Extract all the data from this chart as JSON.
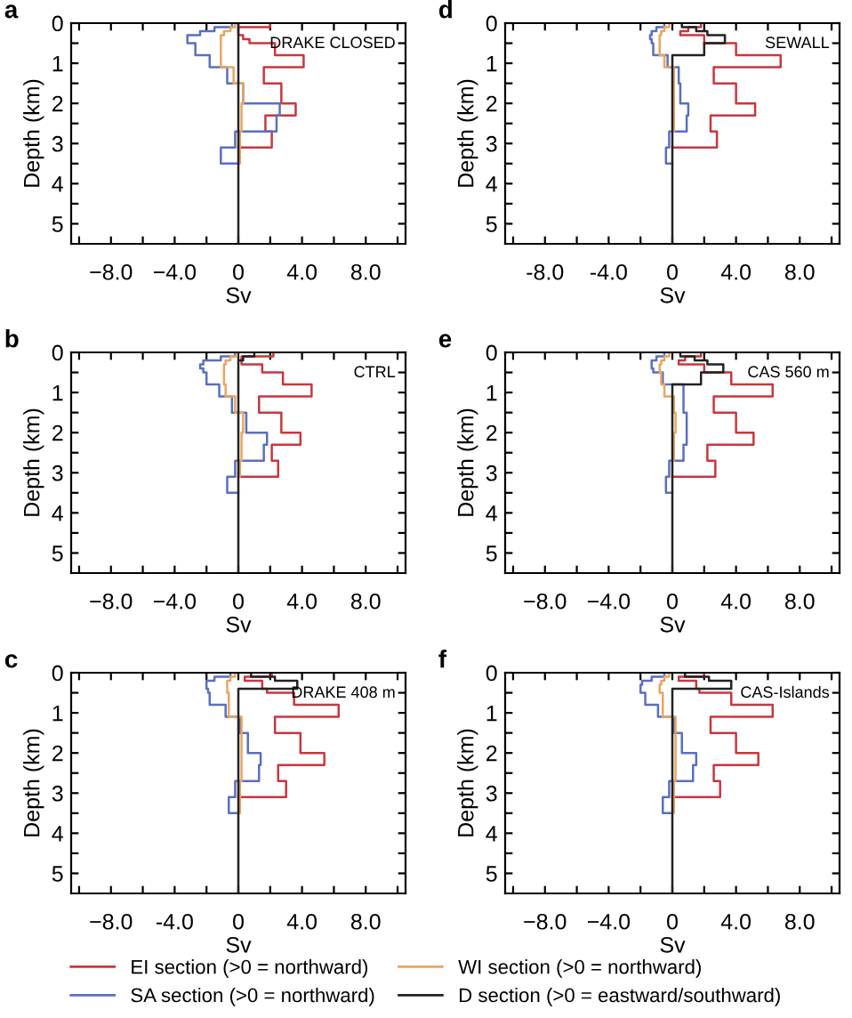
{
  "chart_data": [
    {
      "type": "step",
      "orientation": "horizontal",
      "title": "a",
      "xlabel": "Sv",
      "ylabel": "Depth (km)",
      "annotations": [
        "DRAKE CLOSED"
      ],
      "x": [
        0,
        0.1,
        0.2,
        0.3,
        0.4,
        0.5,
        0.8,
        1.1,
        1.5,
        2.0,
        2.3,
        2.7,
        3.1,
        3.5,
        5.5
      ],
      "xlim": [
        -10.5,
        10.5
      ],
      "ylim": [
        5.5,
        0
      ],
      "xticks": [
        {
          "value": -10,
          "label": null
        },
        {
          "value": -8,
          "label": "−8.0"
        },
        {
          "value": -6,
          "label": null
        },
        {
          "value": -4,
          "label": "−4.0"
        },
        {
          "value": -2,
          "label": null
        },
        0,
        {
          "value": 2,
          "label": null
        },
        {
          "value": 4,
          "label": "4.0"
        },
        {
          "value": 6,
          "label": null
        },
        {
          "value": 8,
          "label": "8.0"
        },
        {
          "value": 10,
          "label": null
        }
      ],
      "yticks": [
        0,
        {
          "value": 0.5,
          "label": null
        },
        1,
        {
          "value": 1.5,
          "label": null
        },
        2,
        {
          "value": 2.5,
          "label": null
        },
        3,
        {
          "value": 3.5,
          "label": null
        },
        4,
        {
          "value": 4.5,
          "label": null
        },
        5
      ],
      "legend": "bottom",
      "series": [
        {
          "name": "EI section (>0 = northward)",
          "color": "#c8373f",
          "values": [
            2.0,
            0.0,
            0.0,
            0.3,
            0.7,
            2.3,
            4.1,
            1.6,
            2.7,
            3.6,
            1.7,
            2.1,
            0,
            null,
            null
          ]
        },
        {
          "name": "SA section (>0 = northward)",
          "color": "#5a6fbf",
          "values": [
            -0.4,
            -1.5,
            -2.4,
            -3.2,
            -3.2,
            -2.7,
            -1.8,
            -0.7,
            0.3,
            2.6,
            2.4,
            -0.2,
            -1.1,
            0,
            null
          ]
        },
        {
          "name": "WI section (>0 = northward)",
          "color": "#e8a562",
          "values": [
            -0.2,
            -0.5,
            -0.9,
            -1.1,
            -1.1,
            -1.1,
            -1.1,
            -0.3,
            0.3,
            0.2,
            0.2,
            0.1,
            0.1,
            0,
            null
          ]
        },
        {
          "name": "D section (>0 = eastward/southward)",
          "color": "#222222",
          "values": [
            0,
            0,
            0,
            0,
            0,
            0,
            0,
            0,
            0,
            0,
            0,
            0,
            0,
            0,
            0
          ]
        }
      ]
    },
    {
      "type": "step",
      "orientation": "horizontal",
      "title": "b",
      "xlabel": "Sv",
      "ylabel": "Depth (km)",
      "annotations": [
        "CTRL"
      ],
      "x": [
        0,
        0.1,
        0.2,
        0.3,
        0.4,
        0.5,
        0.8,
        1.1,
        1.5,
        2.0,
        2.3,
        2.7,
        3.1,
        3.5,
        5.5
      ],
      "xlim": [
        -10.5,
        10.5
      ],
      "ylim": [
        5.5,
        0
      ],
      "xticks": [
        {
          "value": -10,
          "label": null
        },
        {
          "value": -8,
          "label": "−8.0"
        },
        {
          "value": -6,
          "label": null
        },
        {
          "value": -4,
          "label": "−4.0"
        },
        {
          "value": -2,
          "label": null
        },
        0,
        {
          "value": 2,
          "label": null
        },
        {
          "value": 4,
          "label": "4.0"
        },
        {
          "value": 6,
          "label": null
        },
        {
          "value": 8,
          "label": "8.0"
        },
        {
          "value": 10,
          "label": null
        }
      ],
      "yticks": [
        0,
        {
          "value": 0.5,
          "label": null
        },
        1,
        {
          "value": 1.5,
          "label": null
        },
        2,
        {
          "value": 2.5,
          "label": null
        },
        3,
        {
          "value": 3.5,
          "label": null
        },
        4,
        {
          "value": 4.5,
          "label": null
        },
        5
      ],
      "series": [
        {
          "color": "#c8373f",
          "values": [
            2.2,
            0.2,
            0.2,
            1.5,
            1.5,
            2.8,
            4.6,
            1.3,
            2.7,
            3.9,
            2.1,
            2.5,
            0,
            null,
            null
          ]
        },
        {
          "color": "#5a6fbf",
          "values": [
            -0.2,
            -1.1,
            -2.2,
            -2.4,
            -2.2,
            -2.0,
            -1.2,
            -0.4,
            0.5,
            1.8,
            1.6,
            -0.2,
            -0.7,
            0,
            null
          ]
        },
        {
          "color": "#e8a562",
          "values": [
            -0.1,
            -0.5,
            -0.8,
            -0.9,
            -0.9,
            -0.9,
            -0.8,
            -0.2,
            0.3,
            0.2,
            0.2,
            0.1,
            0,
            null,
            null
          ]
        },
        {
          "color": "#222222",
          "values": [
            1.0,
            0.3,
            0,
            0,
            0,
            0,
            0,
            0,
            0,
            0,
            0,
            0,
            0,
            0,
            0
          ]
        }
      ]
    },
    {
      "type": "step",
      "orientation": "horizontal",
      "title": "c",
      "xlabel": "Sv",
      "ylabel": "Depth (km)",
      "annotations": [
        "DRAKE 408 m"
      ],
      "x": [
        0,
        0.1,
        0.2,
        0.3,
        0.4,
        0.5,
        0.8,
        1.1,
        1.5,
        2.0,
        2.3,
        2.7,
        3.1,
        3.5,
        5.5
      ],
      "xlim": [
        -10.5,
        10.5
      ],
      "ylim": [
        5.5,
        0
      ],
      "xticks": [
        {
          "value": -10,
          "label": null
        },
        {
          "value": -8,
          "label": "−8.0"
        },
        {
          "value": -6,
          "label": null
        },
        {
          "value": -4,
          "label": "-4.0"
        },
        {
          "value": -2,
          "label": null
        },
        0,
        {
          "value": 2,
          "label": null
        },
        {
          "value": 4,
          "label": "4.0"
        },
        {
          "value": 6,
          "label": null
        },
        {
          "value": 8,
          "label": "8.0"
        },
        {
          "value": 10,
          "label": null
        }
      ],
      "yticks": [
        0,
        {
          "value": 0.5,
          "label": null
        },
        1,
        {
          "value": 1.5,
          "label": null
        },
        2,
        {
          "value": 2.5,
          "label": null
        },
        3,
        {
          "value": 3.5,
          "label": null
        },
        4,
        {
          "value": 4.5,
          "label": null
        },
        5
      ],
      "series": [
        {
          "color": "#c8373f",
          "values": [
            2.1,
            0.4,
            1.5,
            1.5,
            1.8,
            3.5,
            6.3,
            2.3,
            3.9,
            5.4,
            2.5,
            3.0,
            0,
            null,
            null
          ]
        },
        {
          "color": "#5a6fbf",
          "values": [
            -0.5,
            -1.5,
            -2.0,
            -2.0,
            -1.9,
            -1.8,
            -0.8,
            0.1,
            0.6,
            1.4,
            1.3,
            -0.2,
            -0.6,
            0,
            null
          ]
        },
        {
          "color": "#e8a562",
          "values": [
            -0.2,
            -0.5,
            -0.7,
            -0.7,
            -0.7,
            -0.6,
            -0.6,
            0.2,
            0.2,
            0.2,
            0.2,
            0.1,
            0.1,
            0,
            null
          ]
        },
        {
          "color": "#222222",
          "values": [
            0.8,
            2.3,
            3.7,
            3.7,
            0,
            0,
            0,
            0,
            0,
            0,
            0,
            0,
            0,
            0,
            0
          ]
        }
      ]
    },
    {
      "type": "step",
      "orientation": "horizontal",
      "title": "d",
      "xlabel": "Sv",
      "ylabel": "Depth (km)",
      "annotations": [
        "SEWALL"
      ],
      "x": [
        0,
        0.1,
        0.2,
        0.3,
        0.4,
        0.5,
        0.8,
        1.1,
        1.5,
        2.0,
        2.3,
        2.7,
        3.1,
        3.5,
        5.5
      ],
      "xlim": [
        -10.5,
        10.5
      ],
      "ylim": [
        5.5,
        0
      ],
      "xticks": [
        {
          "value": -10,
          "label": null
        },
        {
          "value": -8,
          "label": "-8.0"
        },
        {
          "value": -6,
          "label": null
        },
        {
          "value": -4,
          "label": "-4.0"
        },
        {
          "value": -2,
          "label": null
        },
        0,
        {
          "value": 2,
          "label": null
        },
        {
          "value": 4,
          "label": "4.0"
        },
        {
          "value": 6,
          "label": null
        },
        {
          "value": 8,
          "label": "8.0"
        },
        {
          "value": 10,
          "label": null
        }
      ],
      "yticks": [
        0,
        {
          "value": 0.5,
          "label": null
        },
        1,
        {
          "value": 1.5,
          "label": null
        },
        2,
        {
          "value": 2.5,
          "label": null
        },
        3,
        {
          "value": 3.5,
          "label": null
        },
        4,
        {
          "value": 4.5,
          "label": null
        },
        5
      ],
      "series": [
        {
          "color": "#c8373f",
          "values": [
            1.8,
            1.0,
            0.5,
            2.0,
            2.0,
            4.0,
            6.8,
            2.6,
            4.0,
            5.2,
            2.4,
            2.8,
            0,
            null,
            null
          ]
        },
        {
          "color": "#5a6fbf",
          "values": [
            -0.5,
            -1.0,
            -1.3,
            -1.4,
            -1.3,
            -1.2,
            -0.3,
            0.4,
            0.5,
            1.0,
            0.9,
            -0.2,
            -0.4,
            0,
            null
          ]
        },
        {
          "color": "#e8a562",
          "values": [
            -0.2,
            -0.5,
            -0.7,
            -0.8,
            -0.8,
            -0.8,
            -0.5,
            0.1,
            0.1,
            0.1,
            0.1,
            0,
            null,
            null,
            null
          ]
        },
        {
          "color": "#222222",
          "values": [
            0.6,
            1.5,
            2.2,
            3.3,
            3.3,
            2.0,
            0,
            0,
            0,
            0,
            0,
            0,
            0,
            0,
            0
          ]
        }
      ]
    },
    {
      "type": "step",
      "orientation": "horizontal",
      "title": "e",
      "xlabel": "Sv",
      "ylabel": "Depth (km)",
      "annotations": [
        "CAS 560 m"
      ],
      "x": [
        0,
        0.1,
        0.2,
        0.3,
        0.4,
        0.5,
        0.8,
        1.1,
        1.5,
        2.0,
        2.3,
        2.7,
        3.1,
        3.5,
        5.5
      ],
      "xlim": [
        -10.5,
        10.5
      ],
      "ylim": [
        5.5,
        0
      ],
      "xticks": [
        {
          "value": -10,
          "label": null
        },
        {
          "value": -8,
          "label": "−8.0"
        },
        {
          "value": -6,
          "label": null
        },
        {
          "value": -4,
          "label": "−4.0"
        },
        {
          "value": -2,
          "label": null
        },
        0,
        {
          "value": 2,
          "label": null
        },
        {
          "value": 4,
          "label": "4.0"
        },
        {
          "value": 6,
          "label": null
        },
        {
          "value": 8,
          "label": "8.0"
        },
        {
          "value": 10,
          "label": null
        }
      ],
      "yticks": [
        0,
        {
          "value": 0.5,
          "label": null
        },
        1,
        {
          "value": 1.5,
          "label": null
        },
        2,
        {
          "value": 2.5,
          "label": null
        },
        3,
        {
          "value": 3.5,
          "label": null
        },
        4,
        {
          "value": 4.5,
          "label": null
        },
        5
      ],
      "series": [
        {
          "color": "#c8373f",
          "values": [
            1.8,
            0.8,
            0.4,
            2.0,
            2.0,
            3.7,
            6.3,
            2.6,
            4.0,
            5.1,
            2.2,
            2.7,
            0,
            null,
            null
          ]
        },
        {
          "color": "#5a6fbf",
          "values": [
            -0.5,
            -1.0,
            -1.3,
            -1.3,
            -1.2,
            -0.6,
            0.7,
            0.7,
            0.9,
            0.9,
            0.7,
            -0.2,
            -0.4,
            0,
            null
          ]
        },
        {
          "color": "#e8a562",
          "values": [
            -0.2,
            -0.5,
            -0.7,
            -0.8,
            -0.8,
            -0.7,
            -0.5,
            0.1,
            0.2,
            0.1,
            0.1,
            0,
            null,
            null,
            null
          ]
        },
        {
          "color": "#222222",
          "values": [
            0.5,
            1.4,
            2.2,
            3.2,
            3.2,
            1.8,
            0,
            0,
            0,
            0,
            0,
            0,
            0,
            0,
            0
          ]
        }
      ]
    },
    {
      "type": "step",
      "orientation": "horizontal",
      "title": "f",
      "xlabel": "Sv",
      "ylabel": "Depth (km)",
      "annotations": [
        "CAS-Islands"
      ],
      "x": [
        0,
        0.1,
        0.2,
        0.3,
        0.4,
        0.5,
        0.8,
        1.1,
        1.5,
        2.0,
        2.3,
        2.7,
        3.1,
        3.5,
        5.5
      ],
      "xlim": [
        -10.5,
        10.5
      ],
      "ylim": [
        5.5,
        0
      ],
      "xticks": [
        {
          "value": -10,
          "label": null
        },
        {
          "value": -8,
          "label": "−8.0"
        },
        {
          "value": -6,
          "label": null
        },
        {
          "value": -4,
          "label": "−4.0"
        },
        {
          "value": -2,
          "label": null
        },
        0,
        {
          "value": 2,
          "label": null
        },
        {
          "value": 4,
          "label": "4.0"
        },
        {
          "value": 6,
          "label": null
        },
        {
          "value": 8,
          "label": "8.0"
        },
        {
          "value": 10,
          "label": null
        }
      ],
      "yticks": [
        0,
        {
          "value": 0.5,
          "label": null
        },
        1,
        {
          "value": 1.5,
          "label": null
        },
        2,
        {
          "value": 2.5,
          "label": null
        },
        3,
        {
          "value": 3.5,
          "label": null
        },
        4,
        {
          "value": 4.5,
          "label": null
        },
        5
      ],
      "series": [
        {
          "color": "#c8373f",
          "values": [
            2.0,
            0.4,
            1.5,
            1.5,
            1.7,
            3.7,
            6.3,
            2.4,
            4.0,
            5.4,
            2.6,
            3.0,
            0,
            null,
            null
          ]
        },
        {
          "color": "#5a6fbf",
          "values": [
            -0.5,
            -1.3,
            -1.9,
            -2.0,
            -2.0,
            -1.7,
            -0.9,
            0.1,
            0.6,
            1.5,
            1.3,
            -0.2,
            -0.6,
            0,
            null
          ]
        },
        {
          "color": "#e8a562",
          "values": [
            -0.2,
            -0.5,
            -0.7,
            -0.8,
            -0.8,
            -0.6,
            -0.6,
            0.2,
            0.2,
            0.2,
            0.2,
            0.1,
            0.1,
            0,
            null
          ]
        },
        {
          "color": "#222222",
          "values": [
            0.8,
            2.3,
            3.7,
            3.7,
            0,
            0,
            0,
            0,
            0,
            0,
            0,
            0,
            0,
            0,
            0
          ]
        }
      ]
    }
  ]
}
